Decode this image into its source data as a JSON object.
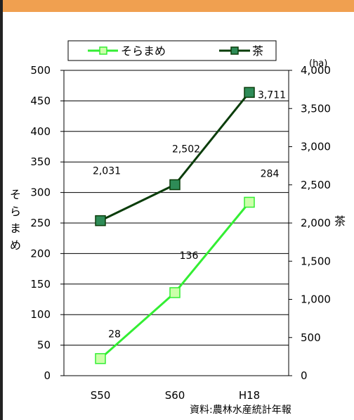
{
  "chart_data": {
    "type": "line",
    "categories": [
      "S50",
      "S60",
      "H18"
    ],
    "series": [
      {
        "name": "そらまめ",
        "axis": "left",
        "values": [
          28,
          136,
          284
        ],
        "value_labels": [
          "28",
          "136",
          "284"
        ],
        "color": "#33ee33",
        "marker_fill": "#ccffaa",
        "marker": "square"
      },
      {
        "name": "茶",
        "axis": "right",
        "values": [
          2031,
          2502,
          3711
        ],
        "value_labels": [
          "2,031",
          "2,502",
          "3,711"
        ],
        "color": "#0a3d0a",
        "marker_fill": "#2e8b57",
        "marker": "square"
      }
    ],
    "left_axis": {
      "label": "そらまめ",
      "min": 0,
      "max": 500,
      "ticks": [
        "0",
        "50",
        "100",
        "150",
        "200",
        "250",
        "300",
        "350",
        "400",
        "450",
        "500"
      ]
    },
    "right_axis": {
      "label": "茶",
      "unit": "(ha)",
      "min": 0,
      "max": 4000,
      "ticks": [
        "0",
        "500",
        "1,000",
        "1,500",
        "2,000",
        "2,500",
        "3,000",
        "3,500",
        "4,000"
      ]
    },
    "grid": true,
    "legend_position": "top",
    "source": "資料:農林水産統計年報"
  },
  "colors": {
    "frame_top": "#f0a050",
    "frame_left": "#222222",
    "grid": "#000000"
  }
}
